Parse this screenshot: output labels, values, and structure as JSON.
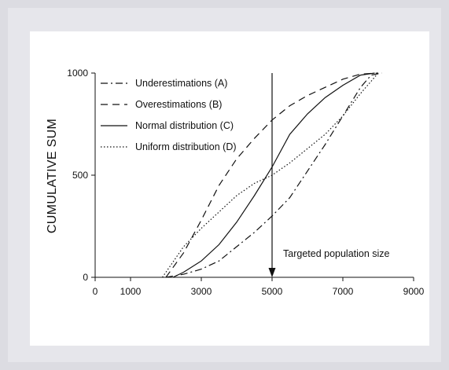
{
  "chart_data": {
    "type": "line",
    "title": "",
    "xlabel": "",
    "ylabel": "CUMULATIVE SUM",
    "xlim": [
      0,
      9000
    ],
    "ylim": [
      0,
      1000
    ],
    "xticks": [
      0,
      1000,
      3000,
      5000,
      7000,
      9000
    ],
    "yticks": [
      0,
      500,
      1000
    ],
    "grid": false,
    "legend": "top-left",
    "series": [
      {
        "name": "Underestimations (A)",
        "style": "dashdot",
        "x": [
          2000,
          2500,
          3000,
          3500,
          4000,
          4500,
          5000,
          5500,
          6000,
          6500,
          7000,
          7500,
          7800,
          8100
        ],
        "y": [
          0,
          15,
          40,
          80,
          150,
          220,
          300,
          390,
          520,
          650,
          790,
          930,
          990,
          1000
        ]
      },
      {
        "name": "Overestimations (B)",
        "style": "dashed",
        "x": [
          2000,
          2500,
          3000,
          3500,
          4000,
          4500,
          5000,
          5500,
          6000,
          6500,
          7000,
          7500,
          8000
        ],
        "y": [
          0,
          120,
          280,
          450,
          580,
          680,
          770,
          840,
          890,
          930,
          970,
          995,
          1000
        ]
      },
      {
        "name": "Normal distribution (C)",
        "style": "solid",
        "x": [
          2200,
          2500,
          3000,
          3500,
          4000,
          4500,
          5000,
          5500,
          6000,
          6500,
          7000,
          7500,
          7900
        ],
        "y": [
          0,
          25,
          80,
          160,
          270,
          400,
          540,
          700,
          800,
          880,
          940,
          990,
          1000
        ]
      },
      {
        "name": "Uniform distribution (D)",
        "style": "dotted",
        "x": [
          1900,
          2500,
          3000,
          3500,
          4000,
          4500,
          5000,
          5500,
          6000,
          6500,
          7000,
          7500,
          8000
        ],
        "y": [
          0,
          150,
          240,
          320,
          400,
          460,
          500,
          560,
          630,
          700,
          790,
          900,
          1000
        ]
      }
    ],
    "annotations": [
      {
        "text": "Targeted population size",
        "x": 5000,
        "arrow_from_y": 1000,
        "arrow_to_y": 0
      }
    ]
  }
}
